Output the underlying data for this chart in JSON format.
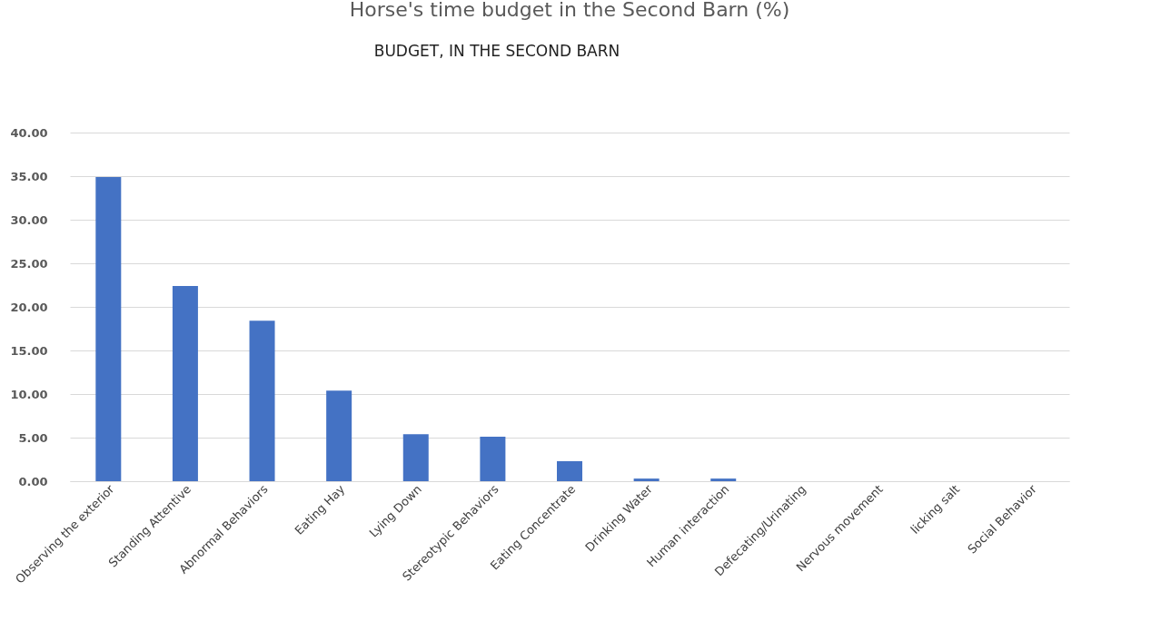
{
  "chart_data": {
    "type": "bar",
    "title": "Horse's time budget in the Second Barn (%)",
    "annotations": [
      "BUDGET, IN THE SECOND BARN"
    ],
    "categories": [
      "Observing the exterior",
      "Standing Attentive",
      "Abnormal Behaviors",
      "Eating Hay",
      "Lying Down",
      "Stereotypic Behaviors",
      "Eating Concentrate",
      "Drinking Water",
      "Human interaction",
      "Defecating/Urinating",
      "Nervous movement",
      "licking salt",
      "Social Behavior"
    ],
    "values": [
      34.9,
      22.4,
      18.4,
      10.4,
      5.4,
      5.1,
      2.3,
      0.3,
      0.3,
      0,
      0,
      0,
      0
    ],
    "color": "#4472c4",
    "ylim": [
      0,
      40
    ],
    "yticks": [
      {
        "value": 0,
        "label": "0.00"
      },
      {
        "value": 5,
        "label": "5.00"
      },
      {
        "value": 10,
        "label": "10.00"
      },
      {
        "value": 15,
        "label": "15.00"
      },
      {
        "value": 20,
        "label": "20.00"
      },
      {
        "value": 25,
        "label": "25.00"
      },
      {
        "value": 30,
        "label": "30.00"
      },
      {
        "value": 35,
        "label": "35.00"
      },
      {
        "value": 40,
        "label": "40.00"
      }
    ],
    "grid": "y"
  }
}
